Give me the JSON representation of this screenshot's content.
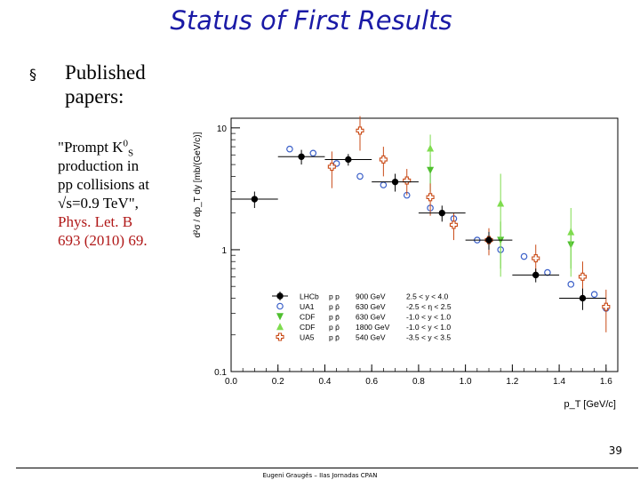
{
  "slide": {
    "title": "Status of First Results",
    "bullet_symbol": "§",
    "bullet_text": "Published papers:",
    "reference": {
      "line1": "\"Prompt K",
      "sup": "0",
      "sub": "S",
      "line1_end": "",
      "line2": "production in",
      "line3": "pp collisions at",
      "line4": "√s=0.9 TeV\",",
      "journal1": "Phys. Let. B",
      "journal2": "693 (2010) 69."
    },
    "page_number": "39",
    "footer": "Eugeni Graugés – IIas Jornadas CPAN"
  },
  "colors": {
    "title": "#1a1aa6",
    "lhcb": "#000000",
    "ua1": "#3a5fc8",
    "cdf630": "#4fbf2f",
    "cdf1800": "#7fdc4f",
    "ua5": "#c94a16"
  },
  "chart_data": {
    "type": "scatter",
    "xlabel": "p_T  [GeV/c]",
    "ylabel": "d²σ / dp_T dy  [mb/(GeV/c)]",
    "xlim": [
      0.0,
      1.65
    ],
    "ylim": [
      0.1,
      12
    ],
    "yscale": "log",
    "x_ticks": [
      "0.0",
      "0.2",
      "0.4",
      "0.6",
      "0.8",
      "1.0",
      "1.2",
      "1.4",
      "1.6"
    ],
    "y_ticks": [
      "10",
      "1",
      "0.1"
    ],
    "legend_placement": "bottom-left",
    "series": [
      {
        "name": "LHCb",
        "legend_beam": "p p",
        "legend_energy": "900 GeV",
        "legend_range": "2.5 < y < 4.0",
        "color": "#000000",
        "marker": "filled-circle",
        "points": [
          {
            "x": 0.1,
            "y": 2.6,
            "xerr": 0.1,
            "yerr": 0.4
          },
          {
            "x": 0.3,
            "y": 5.8,
            "xerr": 0.1,
            "yerr": 0.8
          },
          {
            "x": 0.5,
            "y": 5.5,
            "xerr": 0.1,
            "yerr": 0.6
          },
          {
            "x": 0.7,
            "y": 3.6,
            "xerr": 0.1,
            "yerr": 0.6
          },
          {
            "x": 0.9,
            "y": 2.0,
            "xerr": 0.1,
            "yerr": 0.3
          },
          {
            "x": 1.1,
            "y": 1.2,
            "xerr": 0.1,
            "yerr": 0.2
          },
          {
            "x": 1.3,
            "y": 0.62,
            "xerr": 0.1,
            "yerr": 0.08
          },
          {
            "x": 1.5,
            "y": 0.4,
            "xerr": 0.1,
            "yerr": 0.08
          }
        ]
      },
      {
        "name": "UA1",
        "legend_beam": "p p̄",
        "legend_energy": "630 GeV",
        "legend_range": "-2.5 < η < 2.5",
        "color": "#3a5fc8",
        "marker": "open-circle",
        "points": [
          {
            "x": 0.25,
            "y": 6.7
          },
          {
            "x": 0.35,
            "y": 6.2
          },
          {
            "x": 0.45,
            "y": 5.1
          },
          {
            "x": 0.55,
            "y": 4.0
          },
          {
            "x": 0.65,
            "y": 3.4
          },
          {
            "x": 0.75,
            "y": 2.8
          },
          {
            "x": 0.85,
            "y": 2.2
          },
          {
            "x": 0.95,
            "y": 1.8
          },
          {
            "x": 1.05,
            "y": 1.2
          },
          {
            "x": 1.15,
            "y": 1.0
          },
          {
            "x": 1.25,
            "y": 0.88
          },
          {
            "x": 1.35,
            "y": 0.65
          },
          {
            "x": 1.45,
            "y": 0.52
          },
          {
            "x": 1.55,
            "y": 0.43
          },
          {
            "x": 1.6,
            "y": 0.33
          }
        ]
      },
      {
        "name": "CDF",
        "legend_beam": "p p̄",
        "legend_energy": "630 GeV",
        "legend_range": "-1.0 < y < 1.0",
        "color": "#4fbf2f",
        "marker": "triangle-down",
        "points": [
          {
            "x": 0.85,
            "y": 4.5,
            "yerr": 1.5
          },
          {
            "x": 1.15,
            "y": 1.2,
            "yerr": 0.5
          },
          {
            "x": 1.45,
            "y": 1.1,
            "yerr": 0.4
          }
        ]
      },
      {
        "name": "CDF",
        "legend_beam": "p p̄",
        "legend_energy": "1800 GeV",
        "legend_range": "-1.0 < y < 1.0",
        "color": "#7fdc4f",
        "marker": "triangle-up",
        "points": [
          {
            "x": 0.85,
            "y": 6.8,
            "yerr": 2.0
          },
          {
            "x": 1.15,
            "y": 2.4,
            "yerr": 1.8
          },
          {
            "x": 1.45,
            "y": 1.4,
            "yerr": 0.8
          }
        ]
      },
      {
        "name": "UA5",
        "legend_beam": "p p̄",
        "legend_energy": "540 GeV",
        "legend_range": "-3.5 < y < 3.5",
        "color": "#c94a16",
        "marker": "open-cross",
        "points": [
          {
            "x": 0.43,
            "y": 4.8,
            "yerr": 1.6
          },
          {
            "x": 0.55,
            "y": 9.5,
            "yerr": 3.0
          },
          {
            "x": 0.65,
            "y": 5.5,
            "yerr": 1.5
          },
          {
            "x": 0.75,
            "y": 3.7,
            "yerr": 0.9
          },
          {
            "x": 0.85,
            "y": 2.7,
            "yerr": 0.8
          },
          {
            "x": 0.95,
            "y": 1.6,
            "yerr": 0.4
          },
          {
            "x": 1.1,
            "y": 1.2,
            "yerr": 0.3
          },
          {
            "x": 1.3,
            "y": 0.85,
            "yerr": 0.25
          },
          {
            "x": 1.5,
            "y": 0.6,
            "yerr": 0.2
          },
          {
            "x": 1.6,
            "y": 0.34,
            "yerr": 0.13
          }
        ]
      }
    ]
  }
}
